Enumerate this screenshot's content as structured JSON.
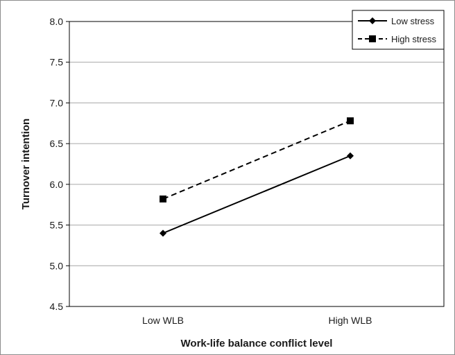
{
  "chart_data": {
    "type": "line",
    "categories": [
      "Low WLB",
      "High WLB"
    ],
    "series": [
      {
        "name": "Low stress",
        "values": [
          5.4,
          6.35
        ],
        "style": "solid",
        "marker": "diamond",
        "color": "#000000"
      },
      {
        "name": "High stress",
        "values": [
          5.82,
          6.78
        ],
        "style": "dashed",
        "marker": "square",
        "color": "#000000"
      }
    ],
    "xlabel": "Work-life balance conflict level",
    "ylabel": "Turnover intention",
    "ylim": [
      4.5,
      8.0
    ],
    "yticks": [
      "4.5",
      "5.0",
      "5.5",
      "6.0",
      "6.5",
      "7.0",
      "7.5",
      "8.0"
    ],
    "grid": true,
    "legend_position": "top-right"
  }
}
